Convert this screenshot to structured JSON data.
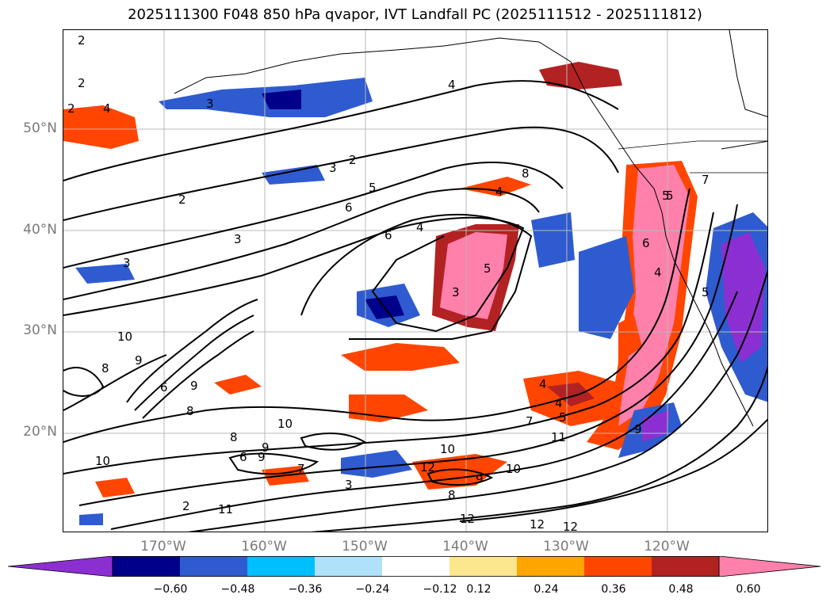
{
  "title": "2025111300 F048 850 hPa qvapor, IVT Landfall PC (2025111512 - 2025111812)",
  "map": {
    "lat_labels": [
      "50°N",
      "40°N",
      "30°N",
      "20°N"
    ],
    "lon_labels": [
      "170°W",
      "160°W",
      "150°W",
      "140°W",
      "130°W",
      "120°W"
    ],
    "contour_labels": [
      "2",
      "2",
      "3",
      "4",
      "3",
      "2",
      "5",
      "6",
      "2",
      "3",
      "3",
      "6",
      "4",
      "8",
      "4",
      "5",
      "3",
      "5",
      "4",
      "5",
      "7",
      "6",
      "10",
      "9",
      "8",
      "6",
      "9",
      "8",
      "10",
      "9",
      "8",
      "9",
      "10",
      "10",
      "7",
      "6",
      "12",
      "8",
      "9",
      "10",
      "12",
      "12",
      "12",
      "2",
      "11",
      "3",
      "4",
      "4",
      "5",
      "7",
      "11",
      "9",
      "2",
      "4",
      "5"
    ]
  },
  "colorbar": {
    "colors": [
      "#8c2fd2",
      "#00008b",
      "#2f5bd0",
      "#00bfff",
      "#afe1fa",
      "#ffffff",
      "#fce68e",
      "#ffa500",
      "#ff4500",
      "#b22222",
      "#ff80ab"
    ],
    "ticks": [
      "−0.60",
      "−0.48",
      "−0.36",
      "−0.24",
      "−0.12",
      "0.12",
      "0.24",
      "0.36",
      "0.48",
      "0.60"
    ]
  }
}
